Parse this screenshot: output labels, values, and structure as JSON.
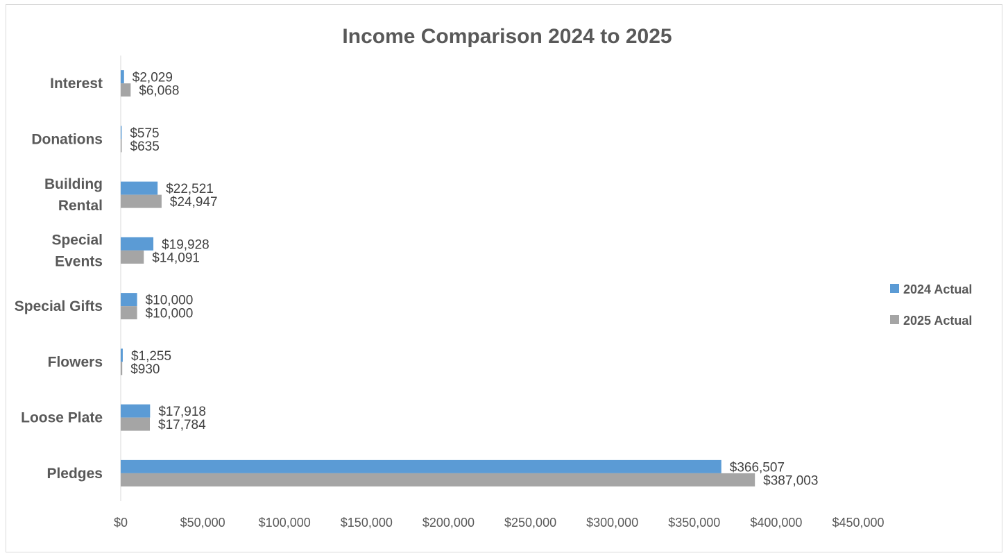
{
  "chart_data": {
    "type": "bar",
    "orientation": "horizontal",
    "title": "Income Comparison 2024 to 2025",
    "categories": [
      "Interest",
      "Donations",
      "Building Rental",
      "Special Events",
      "Special Gifts",
      "Flowers",
      "Loose Plate",
      "Pledges"
    ],
    "category_label_lines": [
      [
        "Interest"
      ],
      [
        "Donations"
      ],
      [
        "Building",
        "Rental"
      ],
      [
        "Special",
        "Events"
      ],
      [
        "Special Gifts"
      ],
      [
        "Flowers"
      ],
      [
        "Loose Plate"
      ],
      [
        "Pledges"
      ]
    ],
    "series": [
      {
        "name": "2024 Actual",
        "color": "#5b9bd5",
        "values": [
          2029,
          575,
          22521,
          19928,
          10000,
          1255,
          17918,
          366507
        ],
        "labels": [
          "$2,029",
          "$575",
          "$22,521",
          "$19,928",
          "$10,000",
          "$1,255",
          "$17,918",
          "$366,507"
        ]
      },
      {
        "name": "2025 Actual",
        "color": "#a5a5a5",
        "values": [
          6068,
          635,
          24947,
          14091,
          10000,
          930,
          17784,
          387003
        ],
        "labels": [
          "$6,068",
          "$635",
          "$24,947",
          "$14,091",
          "$10,000",
          "$930",
          "$17,784",
          "$387,003"
        ]
      }
    ],
    "xlim": [
      0,
      450000
    ],
    "x_ticks": [
      0,
      50000,
      100000,
      150000,
      200000,
      250000,
      300000,
      350000,
      400000,
      450000
    ],
    "x_tick_labels": [
      "$0",
      "$50,000",
      "$100,000",
      "$150,000",
      "$200,000",
      "$250,000",
      "$300,000",
      "$350,000",
      "$400,000",
      "$450,000"
    ],
    "xlabel": "",
    "ylabel": "",
    "grid": false,
    "legend": "right"
  }
}
